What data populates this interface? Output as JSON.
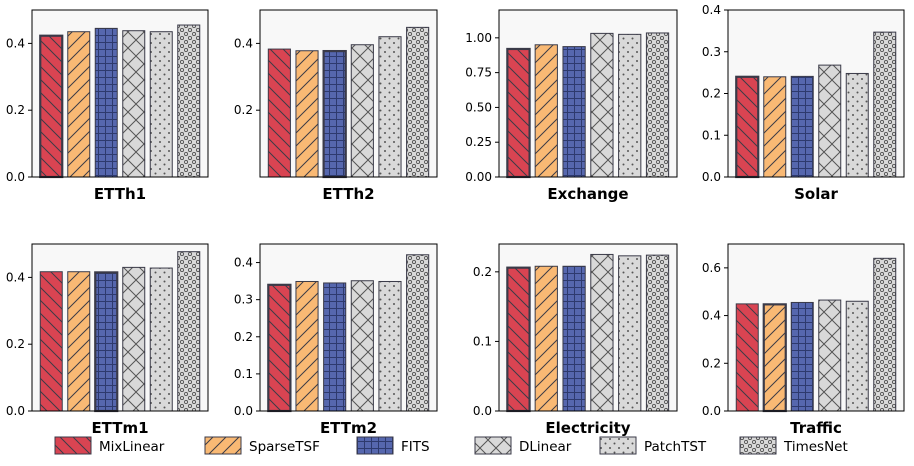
{
  "chart_data": {
    "type": "bar",
    "series_names": [
      "MixLinear",
      "SparseTSF",
      "FITS",
      "DLinear",
      "PatchTST",
      "TimesNet"
    ],
    "series_colors": [
      "#d94452",
      "#f9b974",
      "#5667ae",
      "#d9d9d9",
      "#d9d9d9",
      "#d9d9d9"
    ],
    "series_patterns": [
      "diag-back",
      "diag-fwd",
      "grid",
      "cross",
      "dots",
      "circles"
    ],
    "panels": [
      {
        "title": "ETTh1",
        "ylim": [
          0,
          0.5
        ],
        "yticks": [
          0.0,
          0.2,
          0.4
        ],
        "tick_labels": [
          "0.0",
          "0.2",
          "0.4"
        ],
        "values": [
          0.423,
          0.435,
          0.445,
          0.438,
          0.435,
          0.455
        ],
        "emphasis": 0
      },
      {
        "title": "ETTh2",
        "ylim": [
          0,
          0.5
        ],
        "yticks": [
          0.2,
          0.4
        ],
        "tick_labels": [
          "0.2",
          "0.4"
        ],
        "values": [
          0.383,
          0.378,
          0.377,
          0.396,
          0.42,
          0.448
        ],
        "emphasis": 2
      },
      {
        "title": "Exchange",
        "ylim": [
          0,
          1.2
        ],
        "yticks": [
          0.0,
          0.25,
          0.5,
          0.75,
          1.0
        ],
        "tick_labels": [
          "0.00",
          "0.25",
          "0.50",
          "0.75",
          "1.00"
        ],
        "values": [
          0.92,
          0.95,
          0.937,
          1.032,
          1.025,
          1.035
        ],
        "emphasis": 0
      },
      {
        "title": "Solar",
        "ylim": [
          0,
          0.4
        ],
        "yticks": [
          0.0,
          0.1,
          0.2,
          0.3,
          0.4
        ],
        "tick_labels": [
          "0.0",
          "0.1",
          "0.2",
          "0.3",
          "0.4"
        ],
        "values": [
          0.24,
          0.24,
          0.241,
          0.268,
          0.248,
          0.347
        ],
        "emphasis": 0
      },
      {
        "title": "ETTm1",
        "ylim": [
          0,
          0.5
        ],
        "yticks": [
          0.0,
          0.2,
          0.4
        ],
        "tick_labels": [
          "0.0",
          "0.2",
          "0.4"
        ],
        "values": [
          0.417,
          0.417,
          0.415,
          0.43,
          0.428,
          0.477
        ],
        "emphasis": 2
      },
      {
        "title": "ETTm2",
        "ylim": [
          0,
          0.45
        ],
        "yticks": [
          0.0,
          0.1,
          0.2,
          0.3,
          0.4
        ],
        "tick_labels": [
          "0.0",
          "0.1",
          "0.2",
          "0.3",
          "0.4"
        ],
        "values": [
          0.34,
          0.349,
          0.345,
          0.351,
          0.349,
          0.421
        ],
        "emphasis": 0
      },
      {
        "title": "Electricity",
        "ylim": [
          0,
          0.24
        ],
        "yticks": [
          0.0,
          0.1,
          0.2
        ],
        "tick_labels": [
          "0.0",
          "0.1",
          "0.2"
        ],
        "values": [
          0.206,
          0.208,
          0.208,
          0.225,
          0.223,
          0.224
        ],
        "emphasis": 0
      },
      {
        "title": "Traffic",
        "ylim": [
          0,
          0.7
        ],
        "yticks": [
          0.0,
          0.2,
          0.4,
          0.6
        ],
        "tick_labels": [
          "0.0",
          "0.2",
          "0.4",
          "0.6"
        ],
        "values": [
          0.449,
          0.447,
          0.455,
          0.465,
          0.46,
          0.64
        ],
        "emphasis": 1
      }
    ]
  }
}
